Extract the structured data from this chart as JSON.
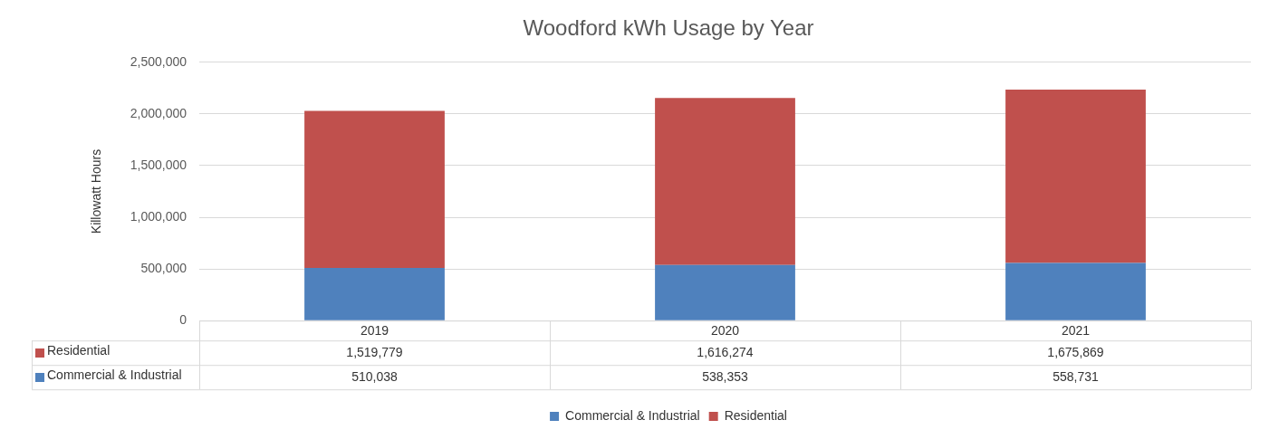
{
  "chart_data": {
    "type": "bar",
    "title": "Woodford kWh Usage by Year",
    "ylabel": "Killowatt Hours",
    "categories": [
      "2019",
      "2020",
      "2021"
    ],
    "series": [
      {
        "name": "Commercial & Industrial",
        "color": "#4f81bd",
        "values": [
          510038,
          538353,
          558731
        ],
        "value_labels": [
          "510,038",
          "538,353",
          "558,731"
        ]
      },
      {
        "name": "Residential",
        "color": "#c0504d",
        "values": [
          1519779,
          1616274,
          1675869
        ],
        "value_labels": [
          "1,519,779",
          "1,616,274",
          "1,675,869"
        ]
      }
    ],
    "stacked": true,
    "ylim": [
      0,
      2500000
    ],
    "yticks": [
      {
        "value": 0,
        "label": "0"
      },
      {
        "value": 500000,
        "label": "500,000"
      },
      {
        "value": 1000000,
        "label": "1,000,000"
      },
      {
        "value": 1500000,
        "label": "1,500,000"
      },
      {
        "value": 2000000,
        "label": "2,000,000"
      },
      {
        "value": 2500000,
        "label": "2,500,000"
      }
    ],
    "grid": "y",
    "legend": "bottom"
  }
}
